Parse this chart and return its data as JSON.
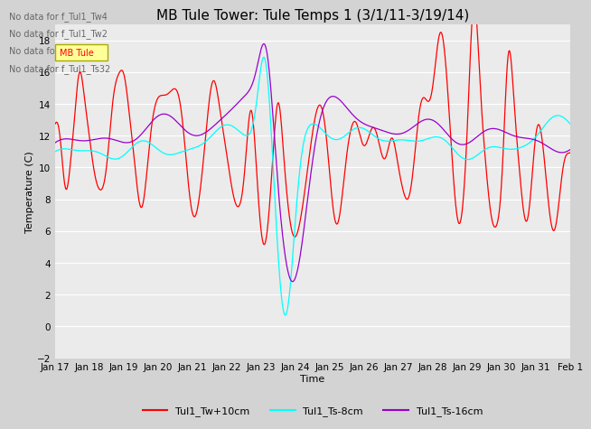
{
  "title": "MB Tule Tower: Tule Temps 1 (3/1/11-3/19/14)",
  "xlabel": "Time",
  "ylabel": "Temperature (C)",
  "ylim": [
    -2,
    19
  ],
  "xlim": [
    0,
    15
  ],
  "line_colors": {
    "red": "#ff0000",
    "cyan": "#00ffff",
    "purple": "#9900cc"
  },
  "legend_labels": [
    "Tul1_Tw+10cm",
    "Tul1_Ts-8cm",
    "Tul1_Ts-16cm"
  ],
  "no_data_texts": [
    "No data for f_Tul1_Tw4",
    "No data for f_Tul1_Tw2",
    "No data for f_Tul1_Ts2",
    "No data for f_Tul1_Ts32"
  ],
  "xtick_labels": [
    "Jan 17",
    "Jan 18",
    "Jan 19",
    "Jan 20",
    "Jan 21",
    "Jan 22",
    "Jan 23",
    "Jan 24",
    "Jan 25",
    "Jan 26",
    "Jan 27",
    "Jan 28",
    "Jan 29",
    "Jan 30",
    "Jan 31",
    "Feb 1"
  ],
  "ytick_labels": [
    -2,
    0,
    2,
    4,
    6,
    8,
    10,
    12,
    14,
    16,
    18
  ],
  "title_fontsize": 11,
  "axis_fontsize": 8,
  "tick_fontsize": 7.5,
  "fig_bg": "#d3d3d3",
  "ax_bg": "#ebebeb"
}
